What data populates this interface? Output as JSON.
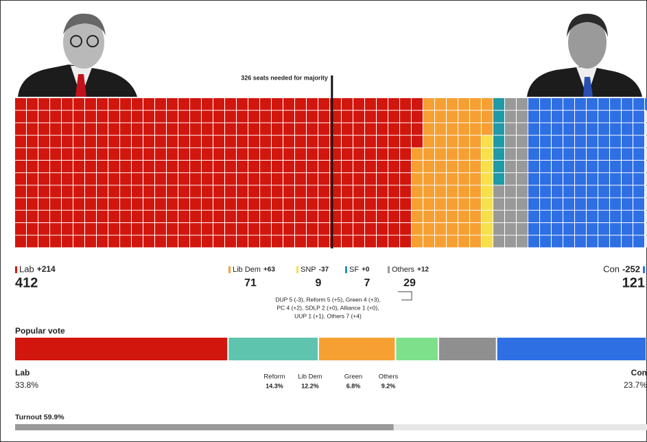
{
  "majority": {
    "seats": 326,
    "label": "326 seats needed for majority"
  },
  "seats": {
    "parties": [
      {
        "name": "Lab",
        "change": "+214",
        "seats": 412,
        "color": "#d1160e"
      },
      {
        "name": "Lib Dem",
        "change": "+63",
        "seats": 71,
        "color": "#f6a033"
      },
      {
        "name": "SNP",
        "change": "-37",
        "seats": 9,
        "color": "#f7e04b"
      },
      {
        "name": "SF",
        "change": "+0",
        "seats": 7,
        "color": "#1f9aa6"
      },
      {
        "name": "Others",
        "change": "+12",
        "seats": 29,
        "color": "#999999"
      },
      {
        "name": "Con",
        "change": "-252",
        "seats": 121,
        "color": "#2f6fe4"
      }
    ],
    "others_note": [
      "DUP 5 (-3), Reform 5 (+5), Green 4 (+3),",
      "PC 4 (+2), SDLP 2 (+0), Alliance 1 (+0),",
      "UUP 1 (+1), Others 7 (+4)"
    ]
  },
  "popular_vote": {
    "title": "Popular vote",
    "parties": [
      {
        "name": "Lab",
        "share": 33.8,
        "share_label": "33.8%",
        "color": "#d1160e"
      },
      {
        "name": "Reform",
        "share": 14.3,
        "share_label": "14.3%",
        "color": "#5ec4ad"
      },
      {
        "name": "Lib Dem",
        "share": 12.2,
        "share_label": "12.2%",
        "color": "#f6a033"
      },
      {
        "name": "Green",
        "share": 6.8,
        "share_label": "6.8%",
        "color": "#7fe08c"
      },
      {
        "name": "Others",
        "share": 9.2,
        "share_label": "9.2%",
        "color": "#8f8f8f"
      },
      {
        "name": "Con",
        "share": 23.7,
        "share_label": "23.7%",
        "color": "#2f6fe4"
      }
    ]
  },
  "turnout": {
    "label": "Turnout 59.9%",
    "value": 59.9
  }
}
